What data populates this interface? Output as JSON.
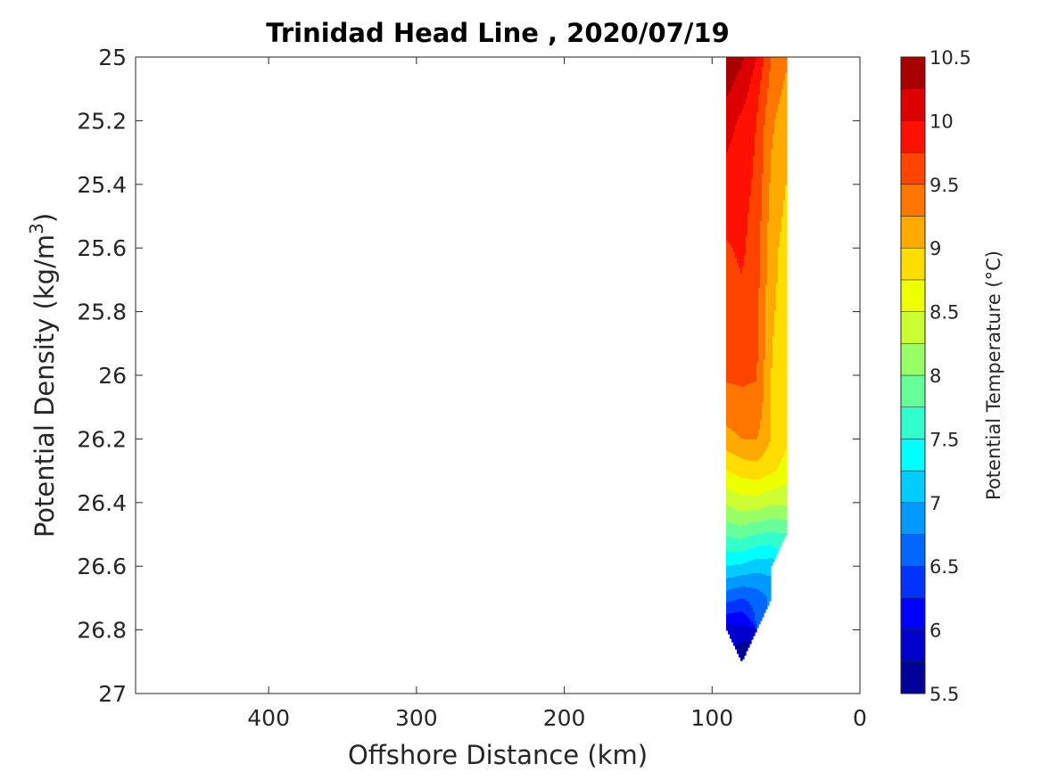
{
  "chart_data": {
    "type": "contourf",
    "title": "Trinidad Head Line , 2020/07/19",
    "xlabel": "Offshore Distance (km)",
    "ylabel": "Potential Density (kg/m3)",
    "ylabel_base": "Potential Density (kg/m",
    "ylabel_sup": "3",
    "ylabel_close": ")",
    "xlim": [
      490,
      0
    ],
    "ylim": [
      25,
      27
    ],
    "xticks": [
      "400",
      "300",
      "200",
      "100",
      "0"
    ],
    "xtick_values": [
      400,
      300,
      200,
      100,
      0
    ],
    "yticks": [
      "25",
      "25.2",
      "25.4",
      "25.6",
      "25.8",
      "26",
      "26.2",
      "26.4",
      "26.6",
      "26.8",
      "27"
    ],
    "ytick_values": [
      25,
      25.2,
      25.4,
      25.6,
      25.8,
      26,
      26.2,
      26.4,
      26.6,
      26.8,
      27
    ],
    "x": [
      90,
      80,
      70,
      60,
      50
    ],
    "density": [
      25.0,
      25.1,
      25.2,
      25.3,
      25.4,
      25.5,
      25.6,
      25.7,
      25.8,
      25.9,
      26.0,
      26.1,
      26.2,
      26.3,
      26.4,
      26.5,
      26.6,
      26.7,
      26.8,
      26.9
    ],
    "temperature_by_station": [
      [
        10.35,
        10.3,
        10.1,
        10.0,
        9.95,
        9.85,
        9.72,
        9.65,
        9.6,
        9.57,
        9.53,
        9.4,
        9.15,
        8.75,
        8.3,
        7.8,
        7.25,
        6.6,
        5.9,
        null
      ],
      [
        10.3,
        10.15,
        9.95,
        9.9,
        9.85,
        9.82,
        9.8,
        9.74,
        9.6,
        9.56,
        9.53,
        9.45,
        9.25,
        8.85,
        8.4,
        7.85,
        7.2,
        6.5,
        5.9,
        5.5
      ],
      [
        10.0,
        9.85,
        9.75,
        9.72,
        9.7,
        9.66,
        9.62,
        9.6,
        9.58,
        9.55,
        9.52,
        9.42,
        9.26,
        8.9,
        8.4,
        7.75,
        7.1,
        6.6,
        null,
        null
      ],
      [
        9.5,
        9.4,
        9.3,
        9.25,
        9.2,
        9.15,
        9.1,
        9.08,
        9.05,
        9.02,
        9.0,
        9.0,
        9.0,
        8.8,
        8.3,
        7.7,
        7.1,
        6.8,
        null,
        null
      ],
      [
        9.3,
        9.2,
        9.1,
        9.05,
        9.0,
        8.95,
        8.9,
        8.88,
        8.86,
        8.84,
        8.82,
        8.8,
        8.8,
        8.65,
        8.3,
        7.75,
        null,
        null,
        null,
        null
      ]
    ],
    "data_boundary": [
      [
        90,
        25
      ],
      [
        50,
        25
      ],
      [
        50,
        26.5
      ],
      [
        60,
        26.6
      ],
      [
        60,
        26.7
      ],
      [
        80,
        26.9
      ],
      [
        90,
        26.8
      ]
    ],
    "colorbar": {
      "label": "Potential Temperature (°C)",
      "range": [
        5.5,
        10.5
      ],
      "step": 0.25,
      "ticks": [
        "5.5",
        "6",
        "6.5",
        "7",
        "7.5",
        "8",
        "8.5",
        "9",
        "9.5",
        "10",
        "10.5"
      ],
      "colors": [
        "#000099",
        "#0000cc",
        "#0000ff",
        "#0033ff",
        "#0066ff",
        "#0099ff",
        "#00ccff",
        "#00ffff",
        "#33ffcc",
        "#66ff99",
        "#99ff66",
        "#ccff33",
        "#eeff00",
        "#ffdd00",
        "#ffaa00",
        "#ff7700",
        "#ff4400",
        "#ff1100",
        "#dd0000",
        "#a80000"
      ]
    }
  }
}
